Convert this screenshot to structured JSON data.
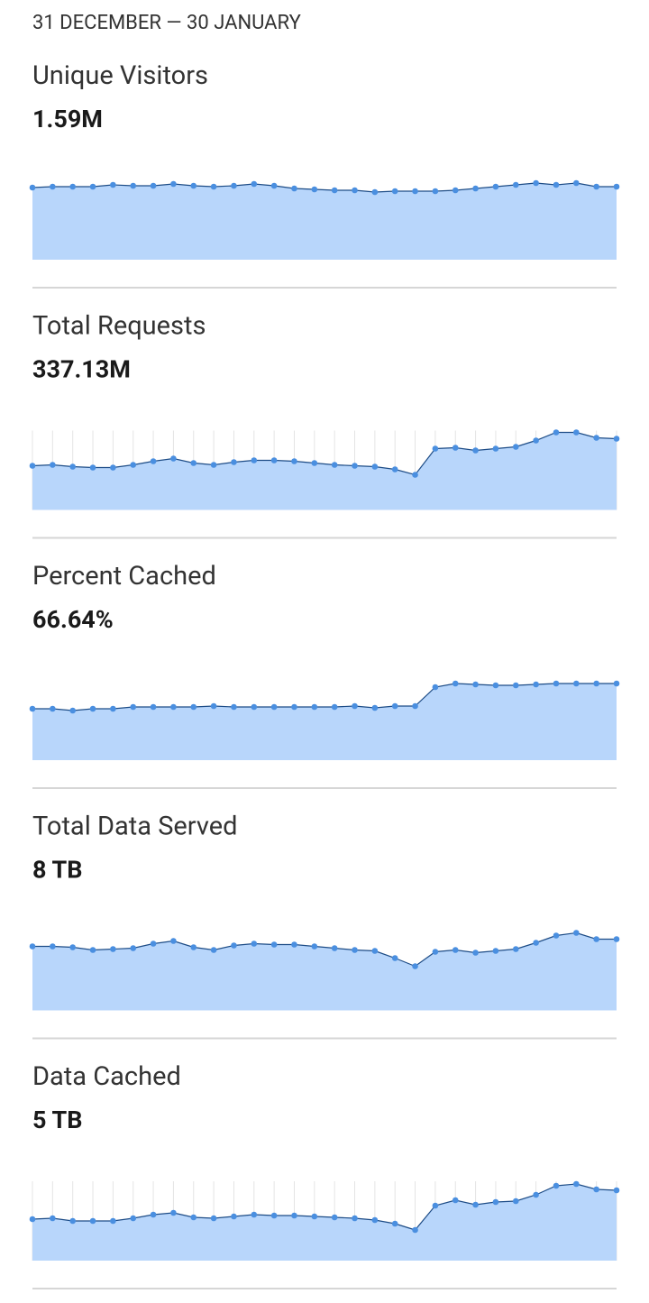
{
  "header": {
    "date_range": "31 DECEMBER — 30 JANUARY"
  },
  "panels": [
    {
      "title": "Unique Visitors",
      "value": "1.59M",
      "chart": {
        "type": "line",
        "ylim": [
          0,
          110
        ],
        "grid": false,
        "color": "#4a8fe0",
        "fill": "#b8d6fb",
        "values": [
          80,
          81,
          81,
          81,
          83,
          82,
          82,
          84,
          82,
          81,
          82,
          84,
          82,
          79,
          78,
          77,
          77,
          75,
          76,
          76,
          76,
          77,
          79,
          81,
          83,
          85,
          83,
          85,
          81,
          81
        ]
      }
    },
    {
      "title": "Total Requests",
      "value": "337.13M",
      "chart": {
        "type": "line",
        "ylim": [
          0,
          110
        ],
        "grid": true,
        "color": "#4a8fe0",
        "fill": "#b8d6fb",
        "values": [
          49,
          50,
          48,
          47,
          47,
          50,
          54,
          57,
          52,
          50,
          53,
          55,
          55,
          54,
          52,
          50,
          49,
          48,
          45,
          39,
          68,
          69,
          66,
          68,
          70,
          77,
          86,
          86,
          80,
          79
        ]
      }
    },
    {
      "title": "Percent Cached",
      "value": "66.64%",
      "chart": {
        "type": "line",
        "ylim": [
          0,
          110
        ],
        "grid": false,
        "color": "#4a8fe0",
        "fill": "#b8d6fb",
        "values": [
          57,
          57,
          55,
          57,
          57,
          59,
          59,
          59,
          59,
          60,
          59,
          59,
          59,
          59,
          59,
          59,
          60,
          58,
          60,
          60,
          81,
          85,
          84,
          83,
          83,
          84,
          85,
          85,
          85,
          85
        ]
      }
    },
    {
      "title": "Total Data Served",
      "value": "8 TB",
      "chart": {
        "type": "line",
        "ylim": [
          0,
          110
        ],
        "grid": false,
        "color": "#4a8fe0",
        "fill": "#b8d6fb",
        "values": [
          71,
          71,
          70,
          67,
          68,
          69,
          74,
          77,
          70,
          67,
          72,
          74,
          73,
          73,
          71,
          69,
          67,
          66,
          58,
          49,
          65,
          67,
          64,
          66,
          68,
          75,
          83,
          86,
          79,
          79
        ]
      }
    },
    {
      "title": "Data Cached",
      "value": "5 TB",
      "chart": {
        "type": "line",
        "ylim": [
          0,
          110
        ],
        "grid": true,
        "color": "#4a8fe0",
        "fill": "#b8d6fb",
        "values": [
          46,
          47,
          44,
          44,
          44,
          47,
          51,
          53,
          48,
          47,
          49,
          51,
          50,
          50,
          49,
          48,
          47,
          45,
          41,
          34,
          61,
          67,
          62,
          65,
          66,
          73,
          83,
          85,
          79,
          78
        ]
      }
    }
  ]
}
